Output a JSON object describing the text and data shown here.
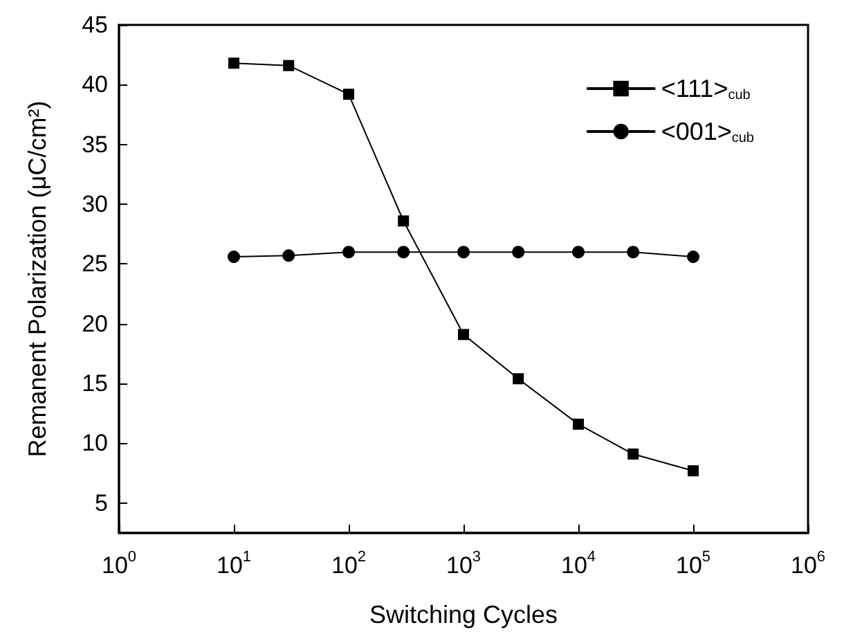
{
  "chart_data": {
    "type": "line",
    "xlabel": "Switching Cycles",
    "ylabel": "Remanent Polarization (μC/cm²)",
    "x": [
      10,
      30,
      100,
      300,
      1000,
      3000,
      10000,
      30000,
      100000
    ],
    "series": [
      {
        "name": "<111>$_{cub}$",
        "color": "#000000",
        "marker": "square",
        "values": [
          41.8,
          41.6,
          39.2,
          28.6,
          19.1,
          15.4,
          11.6,
          9.1,
          7.7
        ]
      },
      {
        "name": "<001>$_{cub}$",
        "color": "#000000",
        "marker": "circle",
        "values": [
          25.6,
          25.7,
          26.0,
          26.0,
          26.0,
          26.0,
          26.0,
          26.0,
          25.6
        ]
      }
    ],
    "log": "x",
    "xlim": [
      1,
      1000000
    ],
    "xticks": [
      {
        "value": 1,
        "label": "10$^{0}$"
      },
      {
        "value": 10,
        "label": "10$^{1}$"
      },
      {
        "value": 100,
        "label": "10$^{2}$"
      },
      {
        "value": 1000,
        "label": "10$^{3}$"
      },
      {
        "value": 10000,
        "label": "10$^{4}$"
      },
      {
        "value": 100000,
        "label": "10$^{5}$"
      },
      {
        "value": 1000000,
        "label": "10$^{6}$"
      }
    ],
    "ylim": [
      2.5,
      45
    ],
    "yticks": [
      5,
      10,
      15,
      20,
      25,
      30,
      35,
      40,
      45
    ],
    "grid": false,
    "legend": "top right",
    "line_style": "solid"
  }
}
